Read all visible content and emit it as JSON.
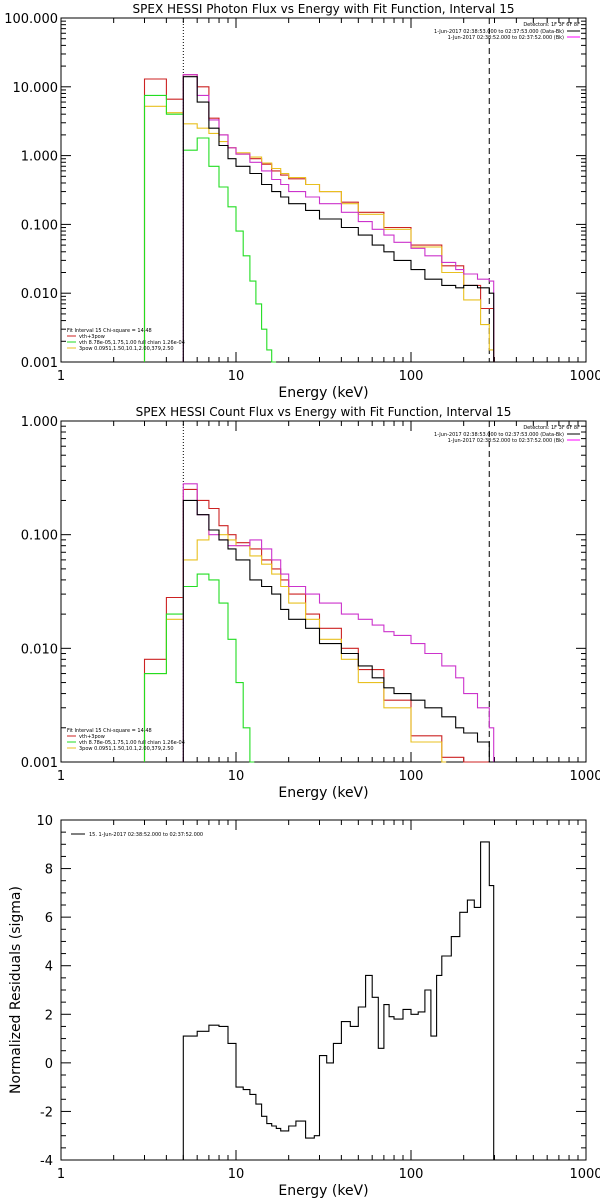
{
  "panels": [
    {
      "title": "SPEX HESSI Photon Flux vs Energy with Fit Function, Interval 15",
      "xlabel": "Energy (keV)",
      "ylabel": "",
      "xscale": "log",
      "yscale": "log",
      "xlim": [
        1,
        1000
      ],
      "ylim": [
        0.001,
        100
      ],
      "xticks": [
        "1",
        "10",
        "100",
        "1000"
      ],
      "yticks": [
        "0.001",
        "0.010",
        "0.100",
        "1.000",
        "10.000",
        "100.000"
      ],
      "vlines": {
        "dotted": 5,
        "dashed": 280
      },
      "detectors_label": "Detectors: 1F 3F 6F 8F",
      "time_labels": [
        {
          "text": "1-Jun-2017 02:38:53.000 to 02:37:53.000 (Data-Bk)",
          "color": "#000000"
        },
        {
          "text": "1-Jun-2017 02:38:52.000 to 02:37:52.000 (Bk)",
          "color": "#ff00ff"
        }
      ],
      "fit_legend": {
        "header": "Fit Interval 15   Chi-square = 14.48",
        "items": [
          {
            "text": "vth+3pow",
            "color": "#cc2222"
          },
          {
            "text": "vth 8.78e-05,1.75,1.00  full chian 1.26e-04",
            "color": "#22dd22"
          },
          {
            "text": "3pow 0.0951,1.50,10.1,2.00,379,2.50",
            "color": "#e8c020"
          }
        ]
      },
      "series": [
        {
          "name": "vth+3pow",
          "color": "#cc2222",
          "style": "step",
          "x": [
            3.0,
            4.0,
            5.0,
            6.0,
            7.0,
            8.0,
            9.0,
            10.0,
            12.0,
            14.0,
            16.0,
            18.0,
            20.0,
            25.0,
            30.0,
            40.0,
            50.0,
            70.0,
            100.0,
            150.0,
            200.0,
            250.0,
            280.0
          ],
          "y": [
            13.0,
            6.6,
            15.0,
            10.0,
            3.5,
            2.0,
            1.3,
            1.05,
            0.9,
            0.75,
            0.6,
            0.52,
            0.46,
            0.38,
            0.3,
            0.21,
            0.15,
            0.09,
            0.05,
            0.025,
            0.013,
            0.006,
            0.006
          ]
        },
        {
          "name": "",
          "color": "#e8c020",
          "style": "step",
          "x": [
            3.0,
            4.0,
            5.0,
            6.0,
            7.0,
            8.0,
            9.0,
            10.0,
            12.0,
            14.0,
            16.0,
            18.0,
            20.0,
            25.0,
            30.0,
            40.0,
            50.0,
            70.0,
            100.0,
            150.0,
            200.0,
            250.0,
            280.0
          ],
          "y": [
            5.2,
            4.2,
            2.9,
            2.5,
            2.1,
            1.6,
            1.3,
            1.1,
            0.95,
            0.78,
            0.65,
            0.55,
            0.48,
            0.38,
            0.3,
            0.2,
            0.14,
            0.085,
            0.047,
            0.02,
            0.008,
            0.0035,
            0.0015
          ]
        },
        {
          "name": "",
          "color": "#22dd22",
          "style": "step",
          "x": [
            3.0,
            4.0,
            5.0,
            6.0,
            7.0,
            8.0,
            9.0,
            10.0,
            11.0,
            12.0,
            13.0,
            14.0,
            15.0,
            16.0
          ],
          "y": [
            7.5,
            4.0,
            1.2,
            1.8,
            0.7,
            0.35,
            0.18,
            0.08,
            0.035,
            0.015,
            0.007,
            0.003,
            0.0015,
            0.001
          ]
        },
        {
          "name": "",
          "color": "#cc33cc",
          "style": "step",
          "x": [
            5.0,
            6.0,
            7.0,
            8.0,
            9.0,
            10.0,
            12.0,
            14.0,
            16.0,
            18.0,
            20.0,
            25.0,
            30.0,
            40.0,
            50.0,
            60.0,
            70.0,
            80.0,
            100.0,
            120.0,
            150.0,
            180.0,
            200.0,
            240.0,
            280.0
          ],
          "y": [
            15.0,
            7.5,
            3.3,
            2.0,
            1.3,
            1.05,
            0.8,
            0.6,
            0.45,
            0.38,
            0.3,
            0.25,
            0.2,
            0.15,
            0.11,
            0.085,
            0.07,
            0.055,
            0.045,
            0.035,
            0.028,
            0.022,
            0.019,
            0.016,
            0.015
          ]
        },
        {
          "name": "",
          "color": "#000000",
          "style": "step",
          "x": [
            5.0,
            6.0,
            7.0,
            8.0,
            9.0,
            10.0,
            12.0,
            14.0,
            16.0,
            18.0,
            20.0,
            25.0,
            30.0,
            40.0,
            50.0,
            60.0,
            70.0,
            80.0,
            100.0,
            120.0,
            150.0,
            180.0,
            200.0,
            240.0,
            280.0
          ],
          "y": [
            14.0,
            6.0,
            2.5,
            1.4,
            0.9,
            0.7,
            0.55,
            0.38,
            0.3,
            0.25,
            0.2,
            0.16,
            0.12,
            0.09,
            0.07,
            0.05,
            0.04,
            0.03,
            0.022,
            0.016,
            0.013,
            0.012,
            0.013,
            0.012,
            0.01
          ]
        }
      ]
    },
    {
      "title": "SPEX HESSI Count Flux vs Energy with Fit Function, Interval 15",
      "xlabel": "Energy (keV)",
      "ylabel": "",
      "xscale": "log",
      "yscale": "log",
      "xlim": [
        1,
        1000
      ],
      "ylim": [
        0.001,
        1
      ],
      "xticks": [
        "1",
        "10",
        "100",
        "1000"
      ],
      "yticks": [
        "0.001",
        "0.010",
        "0.100",
        "1.000"
      ],
      "vlines": {
        "dotted": 5,
        "dashed": 280
      },
      "detectors_label": "Detectors: 1F 3F 6F 8F",
      "time_labels": [
        {
          "text": "1-Jun-2017 02:38:53.000 to 02:37:53.000 (Data-Bk)",
          "color": "#000000"
        },
        {
          "text": "1-Jun-2017 02:38:52.000 to 02:37:52.000 (Bk)",
          "color": "#ff00ff"
        }
      ],
      "fit_legend": {
        "header": "Fit Interval 15   Chi-square = 14.48",
        "items": [
          {
            "text": "vth+3pow",
            "color": "#cc2222"
          },
          {
            "text": "vth 8.78e-05,1.75,1.00  full chian 1.26e-04",
            "color": "#22dd22"
          },
          {
            "text": "3pow 0.0951,1.50,10.1,2.00,379,2.50",
            "color": "#e8c020"
          }
        ]
      },
      "series": [
        {
          "name": "",
          "color": "#cc2222",
          "style": "step",
          "x": [
            3.0,
            4.0,
            5.0,
            6.0,
            7.0,
            8.0,
            9.0,
            10.0,
            12.0,
            14.0,
            16.0,
            18.0,
            20.0,
            25.0,
            30.0,
            40.0,
            50.0,
            70.0,
            100.0,
            150.0,
            200.0,
            280.0
          ],
          "y": [
            0.008,
            0.028,
            0.25,
            0.2,
            0.17,
            0.12,
            0.1,
            0.085,
            0.075,
            0.06,
            0.05,
            0.04,
            0.03,
            0.02,
            0.015,
            0.01,
            0.0065,
            0.0035,
            0.0017,
            0.0011,
            0.001,
            0.001
          ]
        },
        {
          "name": "",
          "color": "#e8c020",
          "style": "step",
          "x": [
            3.0,
            4.0,
            5.0,
            6.0,
            7.0,
            8.0,
            9.0,
            10.0,
            12.0,
            14.0,
            16.0,
            18.0,
            20.0,
            25.0,
            30.0,
            40.0,
            50.0,
            70.0,
            100.0,
            150.0
          ],
          "y": [
            0.006,
            0.018,
            0.06,
            0.09,
            0.11,
            0.1,
            0.09,
            0.08,
            0.065,
            0.055,
            0.045,
            0.035,
            0.025,
            0.018,
            0.012,
            0.008,
            0.005,
            0.003,
            0.0015,
            0.001
          ]
        },
        {
          "name": "",
          "color": "#22dd22",
          "style": "step",
          "x": [
            3.0,
            4.0,
            5.0,
            6.0,
            7.0,
            8.0,
            9.0,
            10.0,
            11.0,
            12.0
          ],
          "y": [
            0.006,
            0.02,
            0.035,
            0.045,
            0.04,
            0.025,
            0.012,
            0.005,
            0.002,
            0.001
          ]
        },
        {
          "name": "",
          "color": "#cc33cc",
          "style": "step",
          "x": [
            5.0,
            6.0,
            7.0,
            8.0,
            9.0,
            10.0,
            12.0,
            14.0,
            16.0,
            18.0,
            20.0,
            25.0,
            30.0,
            40.0,
            50.0,
            60.0,
            70.0,
            80.0,
            100.0,
            120.0,
            150.0,
            180.0,
            200.0,
            240.0,
            280.0
          ],
          "y": [
            0.28,
            0.15,
            0.1,
            0.09,
            0.08,
            0.08,
            0.09,
            0.075,
            0.06,
            0.045,
            0.035,
            0.03,
            0.025,
            0.02,
            0.018,
            0.016,
            0.014,
            0.013,
            0.011,
            0.009,
            0.007,
            0.0055,
            0.004,
            0.003,
            0.002
          ]
        },
        {
          "name": "",
          "color": "#000000",
          "style": "step",
          "x": [
            5.0,
            6.0,
            7.0,
            8.0,
            9.0,
            10.0,
            12.0,
            14.0,
            16.0,
            18.0,
            20.0,
            25.0,
            30.0,
            40.0,
            50.0,
            60.0,
            70.0,
            80.0,
            100.0,
            120.0,
            150.0,
            180.0,
            200.0,
            240.0,
            280.0
          ],
          "y": [
            0.2,
            0.15,
            0.11,
            0.09,
            0.075,
            0.06,
            0.04,
            0.035,
            0.03,
            0.022,
            0.018,
            0.015,
            0.011,
            0.009,
            0.007,
            0.0055,
            0.0045,
            0.004,
            0.0035,
            0.003,
            0.0025,
            0.002,
            0.0018,
            0.0015,
            0.001
          ]
        }
      ]
    },
    {
      "title": "",
      "xlabel": "Energy (keV)",
      "ylabel": "Normalized Residuals (sigma)",
      "xscale": "log",
      "yscale": "linear",
      "xlim": [
        1,
        1000
      ],
      "ylim": [
        -4,
        10
      ],
      "xticks": [
        "1",
        "10",
        "100",
        "1000"
      ],
      "yticks": [
        "-4",
        "-2",
        "0",
        "2",
        "4",
        "6",
        "8",
        "10"
      ],
      "legend_label": "15.  1-Jun-2017 02:38:52.000 to 02:37:52.000",
      "series": [
        {
          "name": "",
          "color": "#000000",
          "style": "step",
          "x": [
            5.0,
            6.0,
            7.0,
            8.0,
            9.0,
            10.0,
            11.0,
            12.0,
            13.0,
            14.0,
            15.0,
            16.0,
            17.0,
            18.0,
            20.0,
            22.0,
            25.0,
            28.0,
            30.0,
            33.0,
            36.0,
            40.0,
            45.0,
            50.0,
            55.0,
            60.0,
            65.0,
            70.0,
            75.0,
            80.0,
            90.0,
            100.0,
            110.0,
            120.0,
            130.0,
            140.0,
            150.0,
            170.0,
            190.0,
            210.0,
            230.0,
            250.0,
            280.0
          ],
          "y": [
            1.1,
            1.3,
            1.55,
            1.5,
            0.8,
            -1.0,
            -1.1,
            -1.3,
            -1.7,
            -2.2,
            -2.5,
            -2.6,
            -2.7,
            -2.8,
            -2.6,
            -2.4,
            -3.1,
            -3.0,
            0.3,
            0.0,
            0.8,
            1.7,
            1.5,
            2.3,
            3.6,
            2.7,
            0.6,
            2.4,
            1.9,
            1.8,
            2.2,
            2.0,
            2.1,
            3.0,
            1.1,
            3.6,
            4.4,
            5.2,
            6.2,
            6.7,
            6.4,
            9.1,
            7.3
          ]
        }
      ]
    }
  ]
}
